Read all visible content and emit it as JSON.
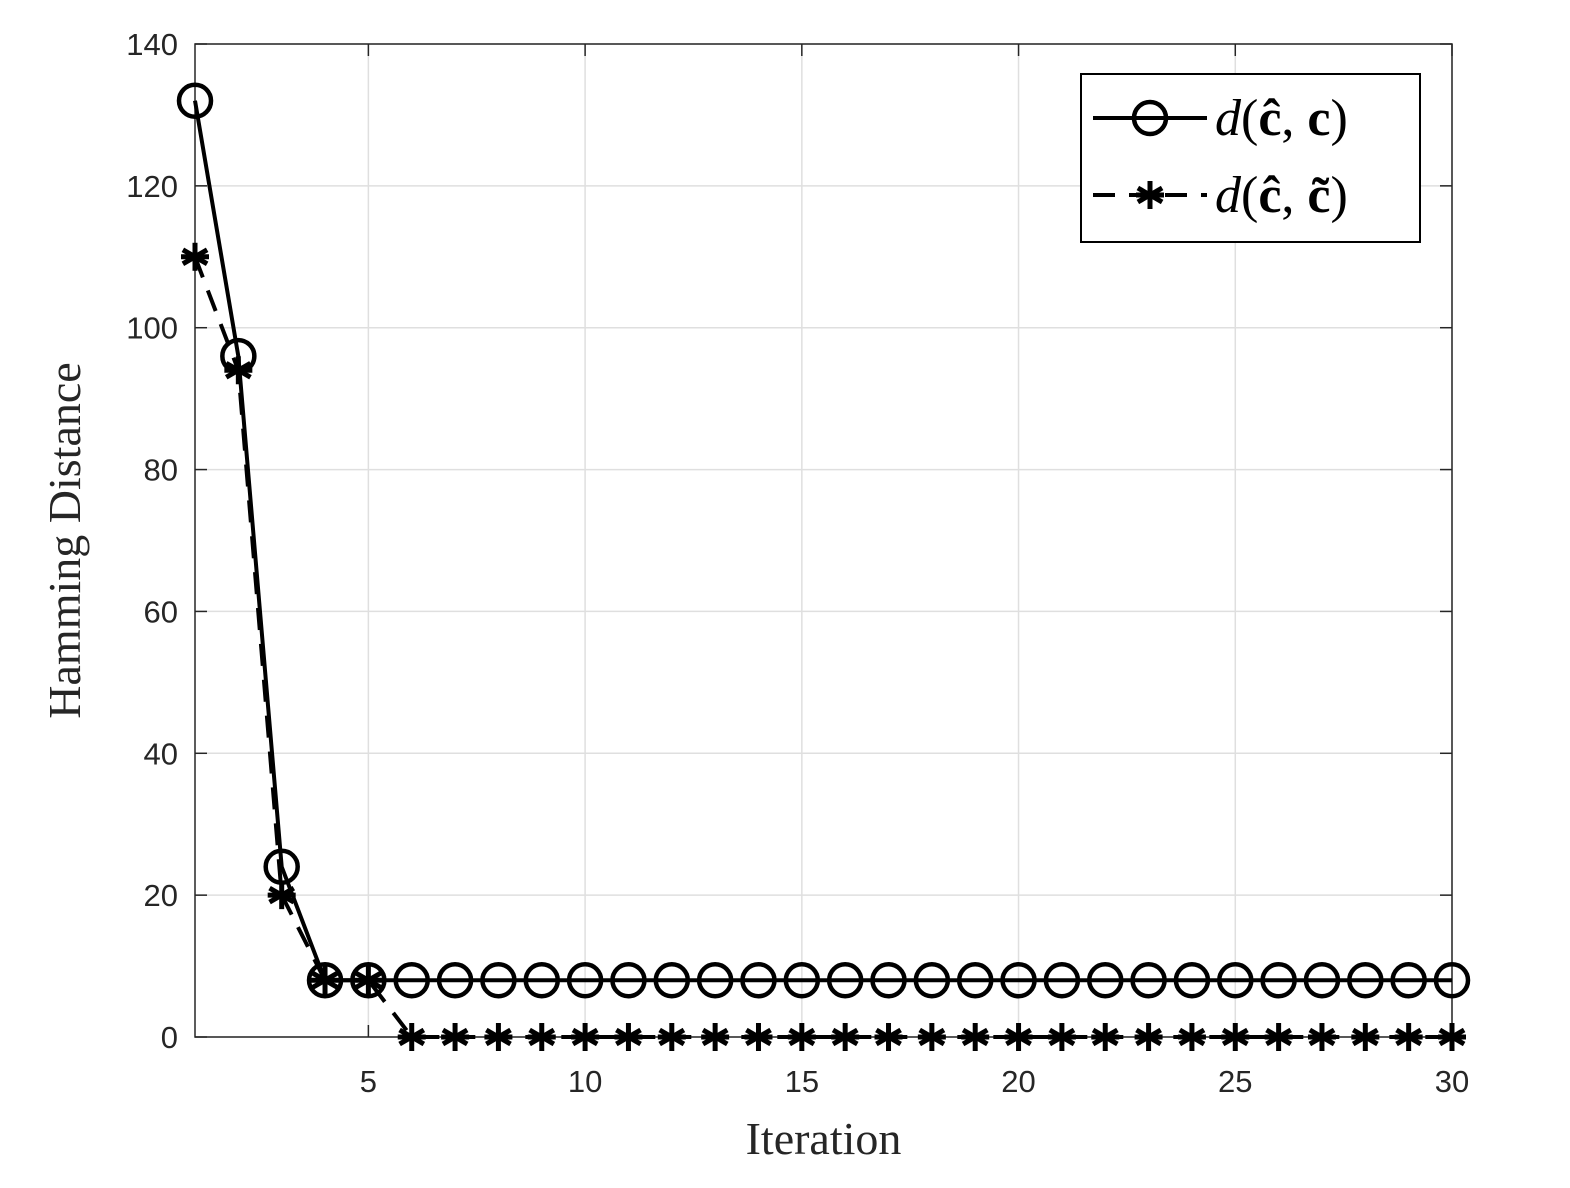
{
  "chart_data": {
    "type": "line",
    "xlabel": "Iteration",
    "ylabel": "Hamming Distance",
    "xlim": [
      1,
      30
    ],
    "ylim": [
      0,
      140
    ],
    "xticks": [
      5,
      10,
      15,
      20,
      25,
      30
    ],
    "yticks": [
      0,
      20,
      40,
      60,
      80,
      100,
      120,
      140
    ],
    "grid": true,
    "legend_position": "top-right",
    "x": [
      1,
      2,
      3,
      4,
      5,
      6,
      7,
      8,
      9,
      10,
      11,
      12,
      13,
      14,
      15,
      16,
      17,
      18,
      19,
      20,
      21,
      22,
      23,
      24,
      25,
      26,
      27,
      28,
      29,
      30
    ],
    "series": [
      {
        "name": "d(ĉ, c)",
        "label_parts": [
          "d",
          "(",
          "ĉ",
          ", ",
          "c",
          ")"
        ],
        "line": "solid",
        "marker": "circle",
        "color": "#000000",
        "values": [
          132,
          96,
          24,
          8,
          8,
          8,
          8,
          8,
          8,
          8,
          8,
          8,
          8,
          8,
          8,
          8,
          8,
          8,
          8,
          8,
          8,
          8,
          8,
          8,
          8,
          8,
          8,
          8,
          8,
          8
        ]
      },
      {
        "name": "d(ĉ, c̃)",
        "label_parts": [
          "d",
          "(",
          "ĉ",
          ", ",
          "c̃",
          ")"
        ],
        "line": "dashed",
        "marker": "asterisk",
        "color": "#000000",
        "values": [
          110,
          94,
          20,
          8,
          8,
          0,
          0,
          0,
          0,
          0,
          0,
          0,
          0,
          0,
          0,
          0,
          0,
          0,
          0,
          0,
          0,
          0,
          0,
          0,
          0,
          0,
          0,
          0,
          0,
          0
        ]
      }
    ]
  }
}
